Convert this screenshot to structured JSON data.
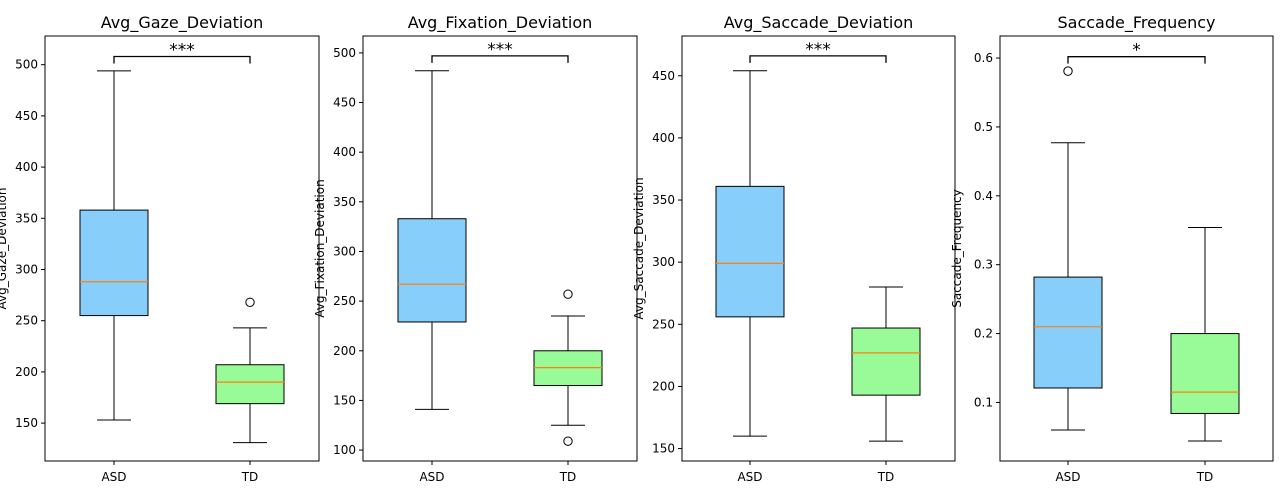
{
  "chart_data": [
    {
      "type": "box",
      "title": "Avg_Gaze_Deviation",
      "ylabel": "Avg_Gaze_Deviation",
      "categories": [
        "ASD",
        "TD"
      ],
      "ylim": [
        113,
        528
      ],
      "yticks": [
        150,
        200,
        250,
        300,
        350,
        400,
        450,
        500
      ],
      "boxes": [
        {
          "label": "ASD",
          "min": 153,
          "q1": 255,
          "median": 288,
          "q3": 358,
          "max": 494,
          "outliers": [],
          "color": "#87CEFA"
        },
        {
          "label": "TD",
          "min": 131,
          "q1": 169,
          "median": 190,
          "q3": 207,
          "max": 243,
          "outliers": [
            268
          ],
          "color": "#98FB98"
        }
      ],
      "significance": {
        "label": "***",
        "y": 508
      }
    },
    {
      "type": "box",
      "title": "Avg_Fixation_Deviation",
      "ylabel": "Avg_Fixation_Deviation",
      "categories": [
        "ASD",
        "TD"
      ],
      "ylim": [
        89,
        517
      ],
      "yticks": [
        100,
        150,
        200,
        250,
        300,
        350,
        400,
        450,
        500
      ],
      "boxes": [
        {
          "label": "ASD",
          "min": 141,
          "q1": 229,
          "median": 267,
          "q3": 333,
          "max": 482,
          "outliers": [],
          "color": "#87CEFA"
        },
        {
          "label": "TD",
          "min": 125,
          "q1": 165,
          "median": 183,
          "q3": 200,
          "max": 235,
          "outliers": [
            257,
            109
          ],
          "color": "#98FB98"
        }
      ],
      "significance": {
        "label": "***",
        "y": 497
      }
    },
    {
      "type": "box",
      "title": "Avg_Saccade_Deviation",
      "ylabel": "Avg_Saccade_Deviation",
      "categories": [
        "ASD",
        "TD"
      ],
      "ylim": [
        140,
        482
      ],
      "yticks": [
        150,
        200,
        250,
        300,
        350,
        400,
        450
      ],
      "boxes": [
        {
          "label": "ASD",
          "min": 160,
          "q1": 256,
          "median": 299,
          "q3": 361,
          "max": 454,
          "outliers": [],
          "color": "#87CEFA"
        },
        {
          "label": "TD",
          "min": 156,
          "q1": 193,
          "median": 227,
          "q3": 247,
          "max": 280,
          "outliers": [],
          "color": "#98FB98"
        }
      ],
      "significance": {
        "label": "***",
        "y": 466
      }
    },
    {
      "type": "box",
      "title": "Saccade_Frequency",
      "ylabel": "Saccade_Frequency",
      "categories": [
        "ASD",
        "TD"
      ],
      "ylim": [
        0.015,
        0.632
      ],
      "yticks": [
        0.1,
        0.2,
        0.3,
        0.4,
        0.5,
        0.6
      ],
      "boxes": [
        {
          "label": "ASD",
          "min": 0.06,
          "q1": 0.121,
          "median": 0.21,
          "q3": 0.282,
          "max": 0.477,
          "outliers": [
            0.581
          ],
          "color": "#87CEFA"
        },
        {
          "label": "TD",
          "min": 0.044,
          "q1": 0.084,
          "median": 0.115,
          "q3": 0.2,
          "max": 0.354,
          "outliers": [],
          "color": "#98FB98"
        }
      ],
      "significance": {
        "label": "*",
        "y": 0.602
      }
    }
  ]
}
